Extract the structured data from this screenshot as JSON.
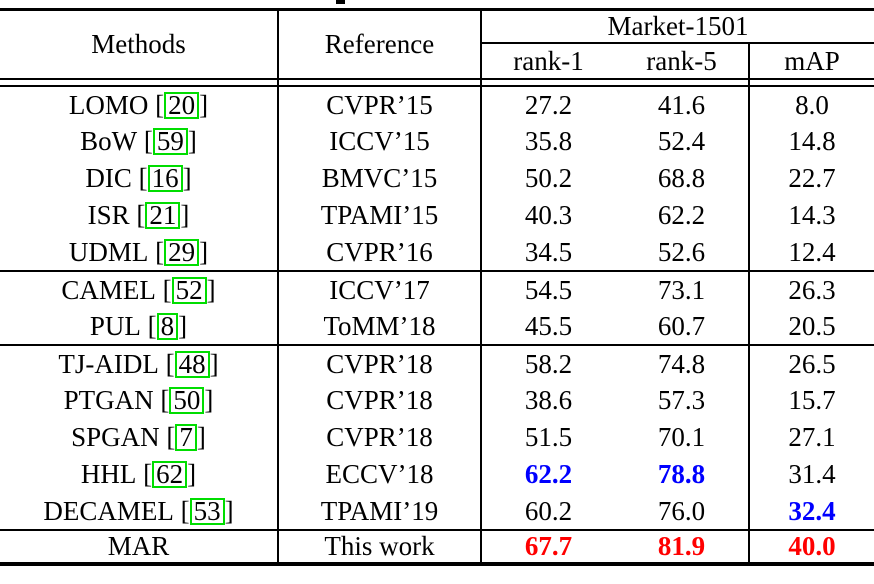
{
  "colors": {
    "best": "#ff0000",
    "runner_up": "#0000ff",
    "citation_box": "#00dd00"
  },
  "table": {
    "cite_brackets": [
      "[",
      "]"
    ],
    "header": {
      "methods": "Methods",
      "reference": "Reference",
      "dataset": "Market-1501",
      "subcols": [
        "rank-1",
        "rank-5",
        "mAP"
      ]
    },
    "groups": [
      {
        "rows": [
          {
            "method": "LOMO",
            "cite": "20",
            "reference": "CVPR’15",
            "values": [
              "27.2",
              "41.6",
              "8.0"
            ],
            "styles": [
              "",
              "",
              ""
            ]
          },
          {
            "method": "BoW",
            "cite": "59",
            "reference": "ICCV’15",
            "values": [
              "35.8",
              "52.4",
              "14.8"
            ],
            "styles": [
              "",
              "",
              ""
            ]
          },
          {
            "method": "DIC",
            "cite": "16",
            "reference": "BMVC’15",
            "values": [
              "50.2",
              "68.8",
              "22.7"
            ],
            "styles": [
              "",
              "",
              ""
            ]
          },
          {
            "method": "ISR",
            "cite": "21",
            "reference": "TPAMI’15",
            "values": [
              "40.3",
              "62.2",
              "14.3"
            ],
            "styles": [
              "",
              "",
              ""
            ]
          },
          {
            "method": "UDML",
            "cite": "29",
            "reference": "CVPR’16",
            "values": [
              "34.5",
              "52.6",
              "12.4"
            ],
            "styles": [
              "",
              "",
              ""
            ]
          }
        ]
      },
      {
        "rows": [
          {
            "method": "CAMEL",
            "cite": "52",
            "reference": "ICCV’17",
            "values": [
              "54.5",
              "73.1",
              "26.3"
            ],
            "styles": [
              "",
              "",
              ""
            ]
          },
          {
            "method": "PUL",
            "cite": "8",
            "reference": "ToMM’18",
            "values": [
              "45.5",
              "60.7",
              "20.5"
            ],
            "styles": [
              "",
              "",
              ""
            ]
          }
        ]
      },
      {
        "rows": [
          {
            "method": "TJ-AIDL",
            "cite": "48",
            "reference": "CVPR’18",
            "values": [
              "58.2",
              "74.8",
              "26.5"
            ],
            "styles": [
              "",
              "",
              ""
            ]
          },
          {
            "method": "PTGAN",
            "cite": "50",
            "reference": "CVPR’18",
            "values": [
              "38.6",
              "57.3",
              "15.7"
            ],
            "styles": [
              "",
              "",
              ""
            ]
          },
          {
            "method": "SPGAN",
            "cite": "7",
            "reference": "CVPR’18",
            "values": [
              "51.5",
              "70.1",
              "27.1"
            ],
            "styles": [
              "",
              "",
              ""
            ]
          },
          {
            "method": "HHL",
            "cite": "62",
            "reference": "ECCV’18",
            "values": [
              "62.2",
              "78.8",
              "31.4"
            ],
            "styles": [
              "runner_up",
              "runner_up",
              ""
            ]
          },
          {
            "method": "DECAMEL",
            "cite": "53",
            "reference": "TPAMI’19",
            "values": [
              "60.2",
              "76.0",
              "32.4"
            ],
            "styles": [
              "",
              "",
              "runner_up"
            ]
          }
        ]
      },
      {
        "rows": [
          {
            "method": "MAR",
            "cite": "",
            "reference": "This work",
            "values": [
              "67.7",
              "81.9",
              "40.0"
            ],
            "styles": [
              "best",
              "best",
              "best"
            ]
          }
        ]
      }
    ]
  }
}
